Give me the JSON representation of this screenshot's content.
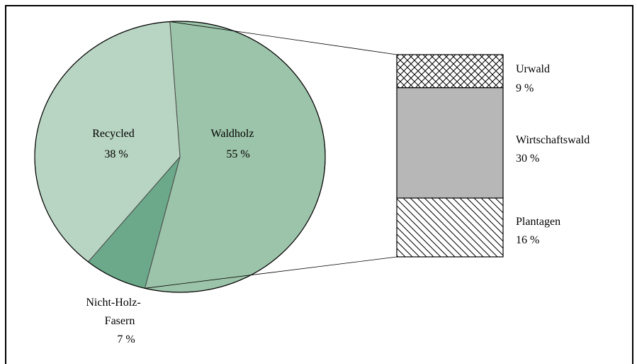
{
  "chart_data": [
    {
      "type": "pie",
      "categories": [
        "Waldholz",
        "Nicht-Holz-Fasern",
        "Recycled"
      ],
      "values": [
        55,
        7,
        38
      ],
      "unit": "%",
      "labels": [
        {
          "name": "Waldholz",
          "value": "55 %"
        },
        {
          "name_lines": [
            "Nicht-Holz-",
            "Fasern"
          ],
          "value": "7 %"
        },
        {
          "name": "Recycled",
          "value": "38 %"
        }
      ],
      "colors": [
        "#9cc4aa",
        "#6ba98a",
        "#b8d4c2"
      ],
      "exploded_slice": "Waldholz"
    },
    {
      "type": "bar",
      "stacked": true,
      "categories": [
        "Urwald",
        "Wirtschaftswald",
        "Plantagen"
      ],
      "values": [
        9,
        30,
        16
      ],
      "unit": "%",
      "labels": [
        {
          "name": "Urwald",
          "value": "9 %"
        },
        {
          "name": "Wirtschaftswald",
          "value": "30 %"
        },
        {
          "name": "Plantagen",
          "value": "16 %"
        }
      ],
      "patterns": [
        "crosshatch",
        "solid-gray",
        "diagonal"
      ]
    }
  ]
}
